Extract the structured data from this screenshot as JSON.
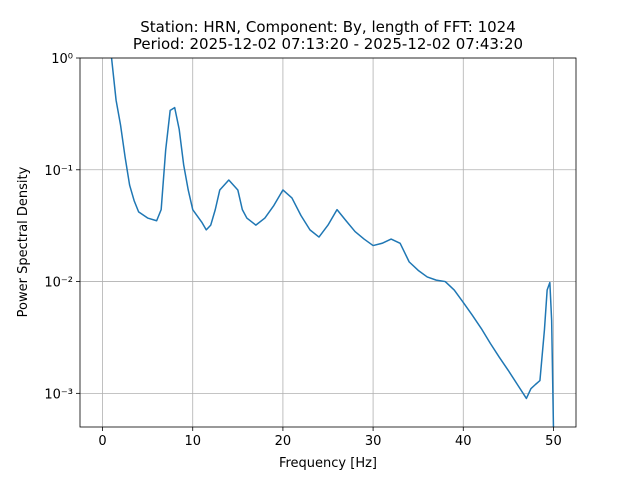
{
  "chart_data": {
    "type": "line",
    "title": [
      "Station: HRN, Component: By, length of FFT: 1024",
      "Period: 2025-12-02 07:13:20 - 2025-12-02 07:43:20"
    ],
    "x_label": "Frequency [Hz]",
    "y_label": "Power Spectral Density",
    "x": [
      1.0,
      1.5,
      2,
      2.5,
      3,
      3.5,
      4,
      5,
      6,
      6.5,
      7,
      7.5,
      8,
      8.5,
      9,
      9.5,
      10,
      11,
      11.5,
      12,
      12.5,
      13,
      14,
      15,
      15.5,
      16,
      17,
      18,
      19,
      20,
      21,
      22,
      23,
      24,
      25,
      26,
      27,
      28,
      29,
      30,
      31,
      32,
      33,
      34,
      35,
      36,
      37,
      38,
      39,
      40,
      41,
      42,
      43,
      44,
      45,
      46,
      47,
      47.5,
      48,
      48.5,
      49,
      49.3,
      49.6,
      49.8,
      50
    ],
    "series": [
      {
        "name": "By",
        "color": "#1f77b4",
        "values": [
          1.0,
          0.42,
          0.25,
          0.13,
          0.073,
          0.053,
          0.042,
          0.037,
          0.035,
          0.044,
          0.15,
          0.34,
          0.36,
          0.23,
          0.11,
          0.066,
          0.044,
          0.034,
          0.029,
          0.032,
          0.044,
          0.066,
          0.081,
          0.066,
          0.044,
          0.037,
          0.032,
          0.037,
          0.048,
          0.066,
          0.056,
          0.039,
          0.029,
          0.025,
          0.032,
          0.044,
          0.035,
          0.028,
          0.024,
          0.021,
          0.022,
          0.024,
          0.022,
          0.015,
          0.0126,
          0.011,
          0.0103,
          0.01,
          0.0084,
          0.0065,
          0.005,
          0.0038,
          0.0028,
          0.0021,
          0.0016,
          0.0012,
          0.0009,
          0.0011,
          0.0012,
          0.0013,
          0.0037,
          0.0084,
          0.0098,
          0.0045,
          0.0005
        ]
      }
    ],
    "xlim": [
      -2.5,
      52.5
    ],
    "xticks": [
      0,
      10,
      20,
      30,
      40,
      50
    ],
    "ylim": [
      0.0005,
      1
    ],
    "log_y": true,
    "yticks": [
      {
        "value": 1,
        "label": "10⁰"
      },
      {
        "value": 0.1,
        "label": "10⁻¹"
      },
      {
        "value": 0.01,
        "label": "10⁻²"
      },
      {
        "value": 0.001,
        "label": "10⁻³"
      }
    ],
    "grid": true
  }
}
